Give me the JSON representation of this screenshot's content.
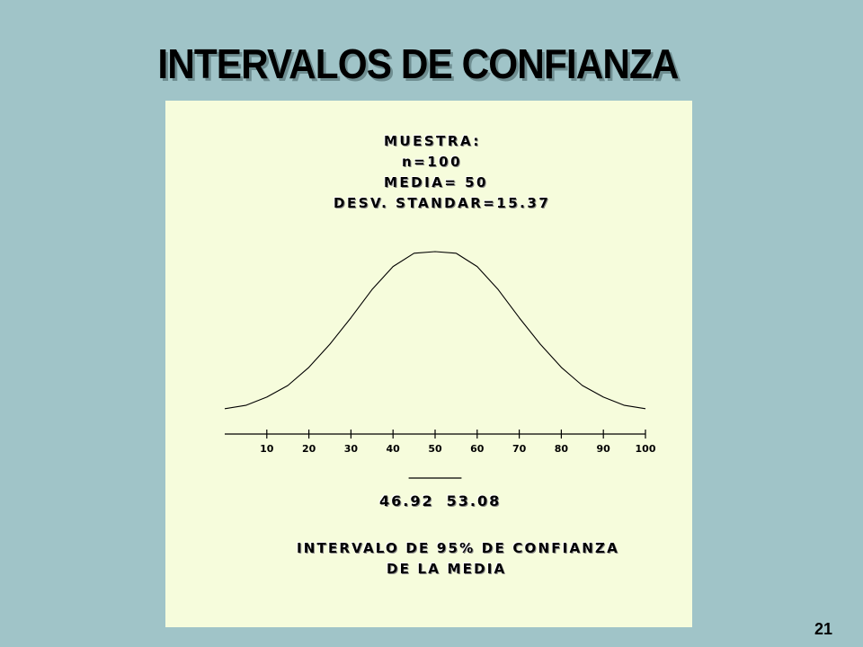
{
  "slide": {
    "title": "INTERVALOS DE CONFIANZA",
    "number": "21"
  },
  "sample": {
    "heading": "MUESTRA:",
    "n": "n=100",
    "mean": "MEDIA= 50",
    "std": "DESV. STANDAR=15.37"
  },
  "interval": {
    "lower": "46.92",
    "upper": "53.08",
    "caption_line1": "INTERVALO DE 95% DE CONFIANZA",
    "caption_line2": "DE LA MEDIA"
  },
  "colors": {
    "slide_background": "#a0c4c8",
    "panel_background": "#f6fcdc",
    "ink": "#000000"
  },
  "chart_data": {
    "type": "line",
    "title": "",
    "xlabel": "",
    "ylabel": "",
    "xlim": [
      0,
      100
    ],
    "xticks": [
      10,
      20,
      30,
      40,
      50,
      60,
      70,
      80,
      90,
      100
    ],
    "grid": false,
    "series": [
      {
        "curve": "normal",
        "mean": 50,
        "sd": 15.37,
        "x": [
          0,
          5,
          10,
          15,
          20,
          25,
          30,
          35,
          40,
          45,
          50,
          55,
          60,
          65,
          70,
          75,
          80,
          85,
          90,
          95,
          100
        ],
        "y": [
          0.05,
          0.07,
          0.12,
          0.19,
          0.3,
          0.44,
          0.6,
          0.77,
          0.91,
          0.99,
          1.0,
          0.99,
          0.91,
          0.77,
          0.6,
          0.44,
          0.3,
          0.19,
          0.12,
          0.07,
          0.05
        ]
      }
    ],
    "interval_marker": [
      46.92,
      53.08
    ]
  }
}
